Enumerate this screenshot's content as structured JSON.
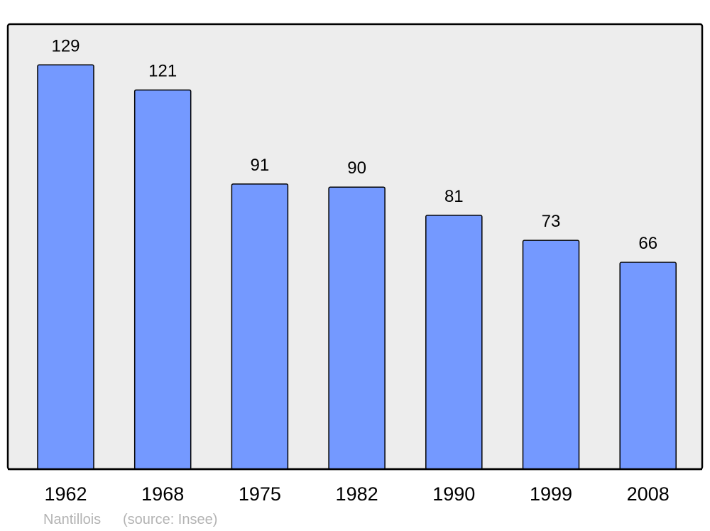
{
  "chart_data": {
    "type": "bar",
    "categories": [
      "1962",
      "1968",
      "1975",
      "1982",
      "1990",
      "1999",
      "2008"
    ],
    "values": [
      129,
      121,
      91,
      90,
      81,
      73,
      66
    ],
    "ylim": [
      0,
      142
    ],
    "grid": false,
    "title": "",
    "xlabel": "",
    "ylabel": "",
    "footer": {
      "place": "Nantillois",
      "source": "(source: Insee)"
    },
    "colors": {
      "bar": "#7499ff",
      "background": "#ededed",
      "border": "#000000",
      "footer_text": "#b3b3b3"
    }
  }
}
